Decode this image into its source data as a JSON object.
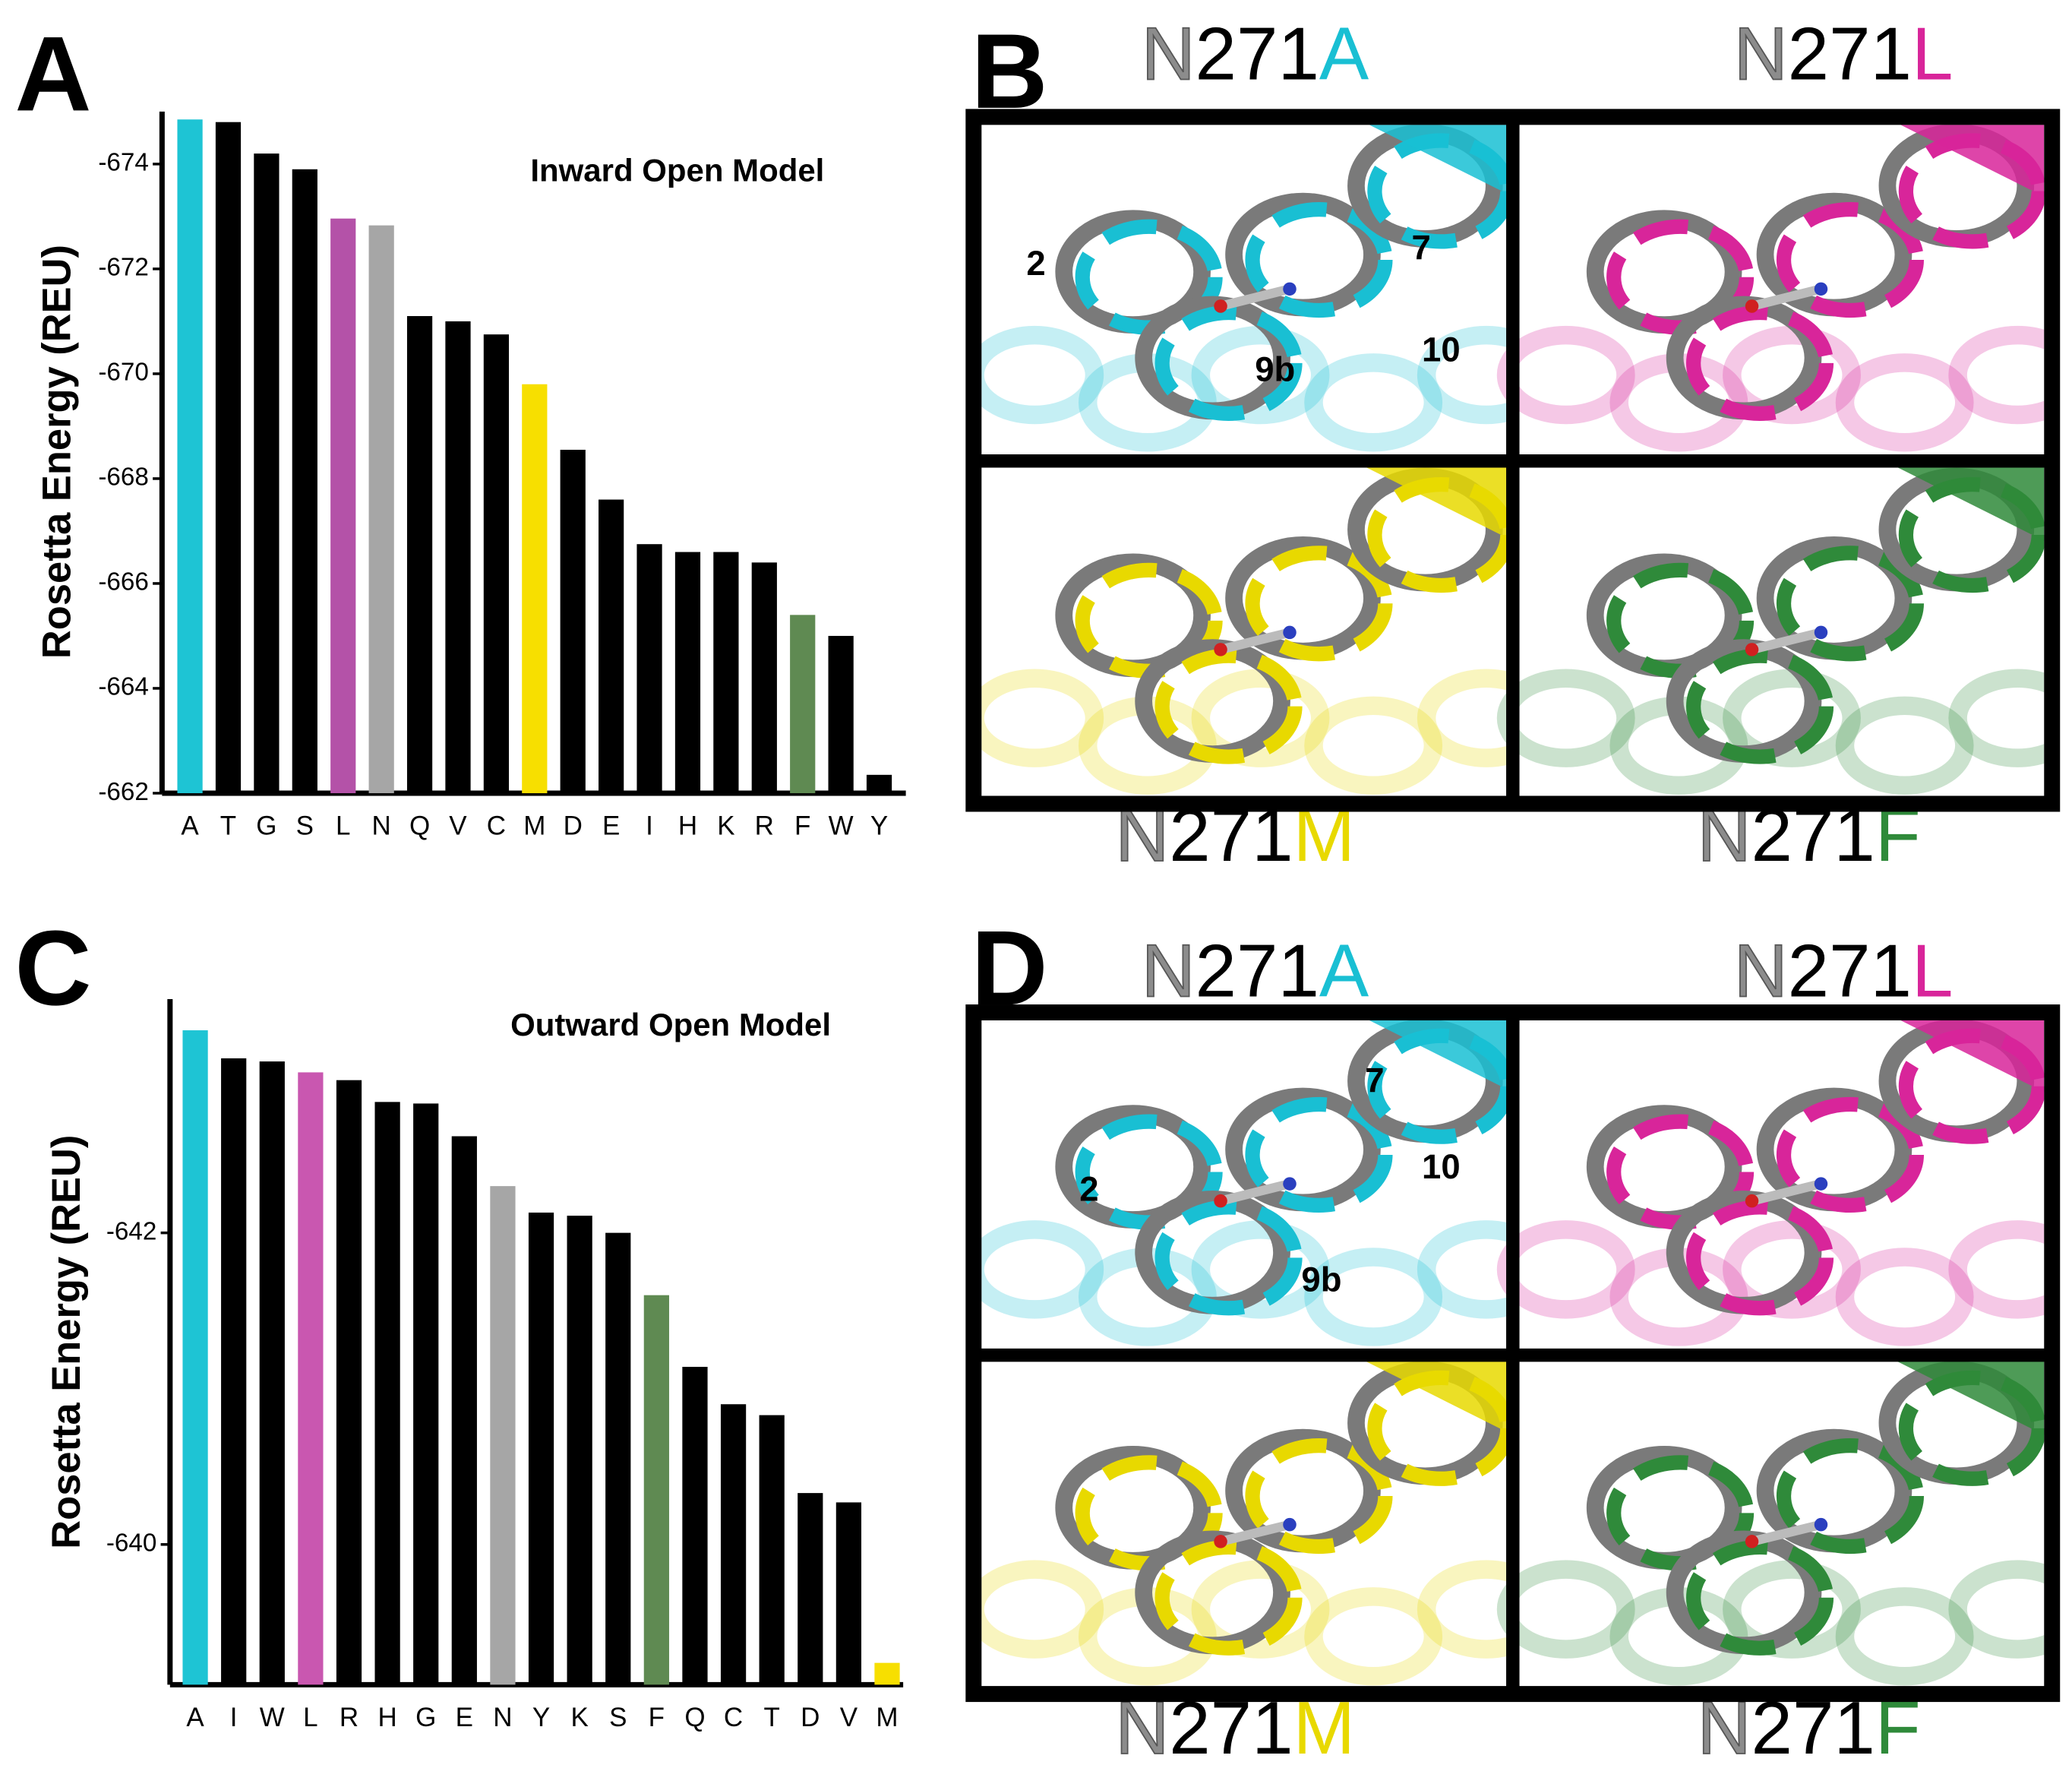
{
  "chart_data": [
    {
      "type": "bar",
      "panel": "A",
      "title": "Inward Open Model",
      "ylabel": "Rosetta Energy (REU)",
      "categories": [
        "A",
        "T",
        "G",
        "S",
        "L",
        "N",
        "Q",
        "V",
        "C",
        "M",
        "D",
        "E",
        "I",
        "H",
        "K",
        "R",
        "F",
        "W",
        "Y"
      ],
      "values": [
        -674.85,
        -674.8,
        -674.2,
        -673.9,
        -672.96,
        -672.83,
        -671.1,
        -671.0,
        -670.75,
        -669.8,
        -668.55,
        -667.6,
        -666.75,
        -666.6,
        -666.6,
        -666.4,
        -665.4,
        -665.0,
        -662.35
      ],
      "colors": [
        "#1ec4d4",
        "#000000",
        "#000000",
        "#000000",
        "#b452a8",
        "#a6a6a6",
        "#000000",
        "#000000",
        "#000000",
        "#f7df00",
        "#000000",
        "#000000",
        "#000000",
        "#000000",
        "#000000",
        "#000000",
        "#5f8a52",
        "#000000",
        "#000000"
      ],
      "ylim": [
        -662,
        -675
      ],
      "yticks": [
        -674,
        -672,
        -670,
        -668,
        -666,
        -664,
        -662
      ]
    },
    {
      "type": "bar",
      "panel": "C",
      "title": "Outward Open Model",
      "ylabel": "Rosetta Energy (REU)",
      "categories": [
        "A",
        "I",
        "W",
        "L",
        "R",
        "H",
        "G",
        "E",
        "N",
        "Y",
        "K",
        "S",
        "F",
        "Q",
        "C",
        "T",
        "D",
        "V",
        "M"
      ],
      "values": [
        -643.3,
        -643.12,
        -643.1,
        -643.03,
        -642.98,
        -642.84,
        -642.83,
        -642.62,
        -642.3,
        -642.13,
        -642.11,
        -642.0,
        -641.6,
        -641.14,
        -640.9,
        -640.83,
        -640.33,
        -640.27,
        -639.24
      ],
      "colors": [
        "#1ec4d4",
        "#000000",
        "#000000",
        "#c957b0",
        "#000000",
        "#000000",
        "#000000",
        "#000000",
        "#a6a6a6",
        "#000000",
        "#000000",
        "#000000",
        "#5f8a52",
        "#000000",
        "#000000",
        "#000000",
        "#000000",
        "#000000",
        "#f7df00"
      ],
      "ylim": [
        -639.1,
        -643.5
      ],
      "yticks": [
        -642,
        -640
      ]
    }
  ],
  "structure_panels": [
    {
      "letter": "B",
      "views": [
        {
          "residue": "N",
          "position": "271",
          "mutant": "A",
          "color": "#19bfd3"
        },
        {
          "residue": "N",
          "position": "271",
          "mutant": "L",
          "color": "#d8259a"
        },
        {
          "residue": "N",
          "position": "271",
          "mutant": "M",
          "color": "#e8d900"
        },
        {
          "residue": "N",
          "position": "271",
          "mutant": "F",
          "color": "#2f8a3a"
        }
      ],
      "helix_labels": [
        "2",
        "7",
        "9b",
        "10"
      ]
    },
    {
      "letter": "D",
      "views": [
        {
          "residue": "N",
          "position": "271",
          "mutant": "A",
          "color": "#19bfd3"
        },
        {
          "residue": "N",
          "position": "271",
          "mutant": "L",
          "color": "#d8259a"
        },
        {
          "residue": "N",
          "position": "271",
          "mutant": "M",
          "color": "#e8d900"
        },
        {
          "residue": "N",
          "position": "271",
          "mutant": "F",
          "color": "#2f8a3a"
        }
      ],
      "helix_labels": [
        "7",
        "10",
        "2",
        "9b"
      ]
    }
  ]
}
